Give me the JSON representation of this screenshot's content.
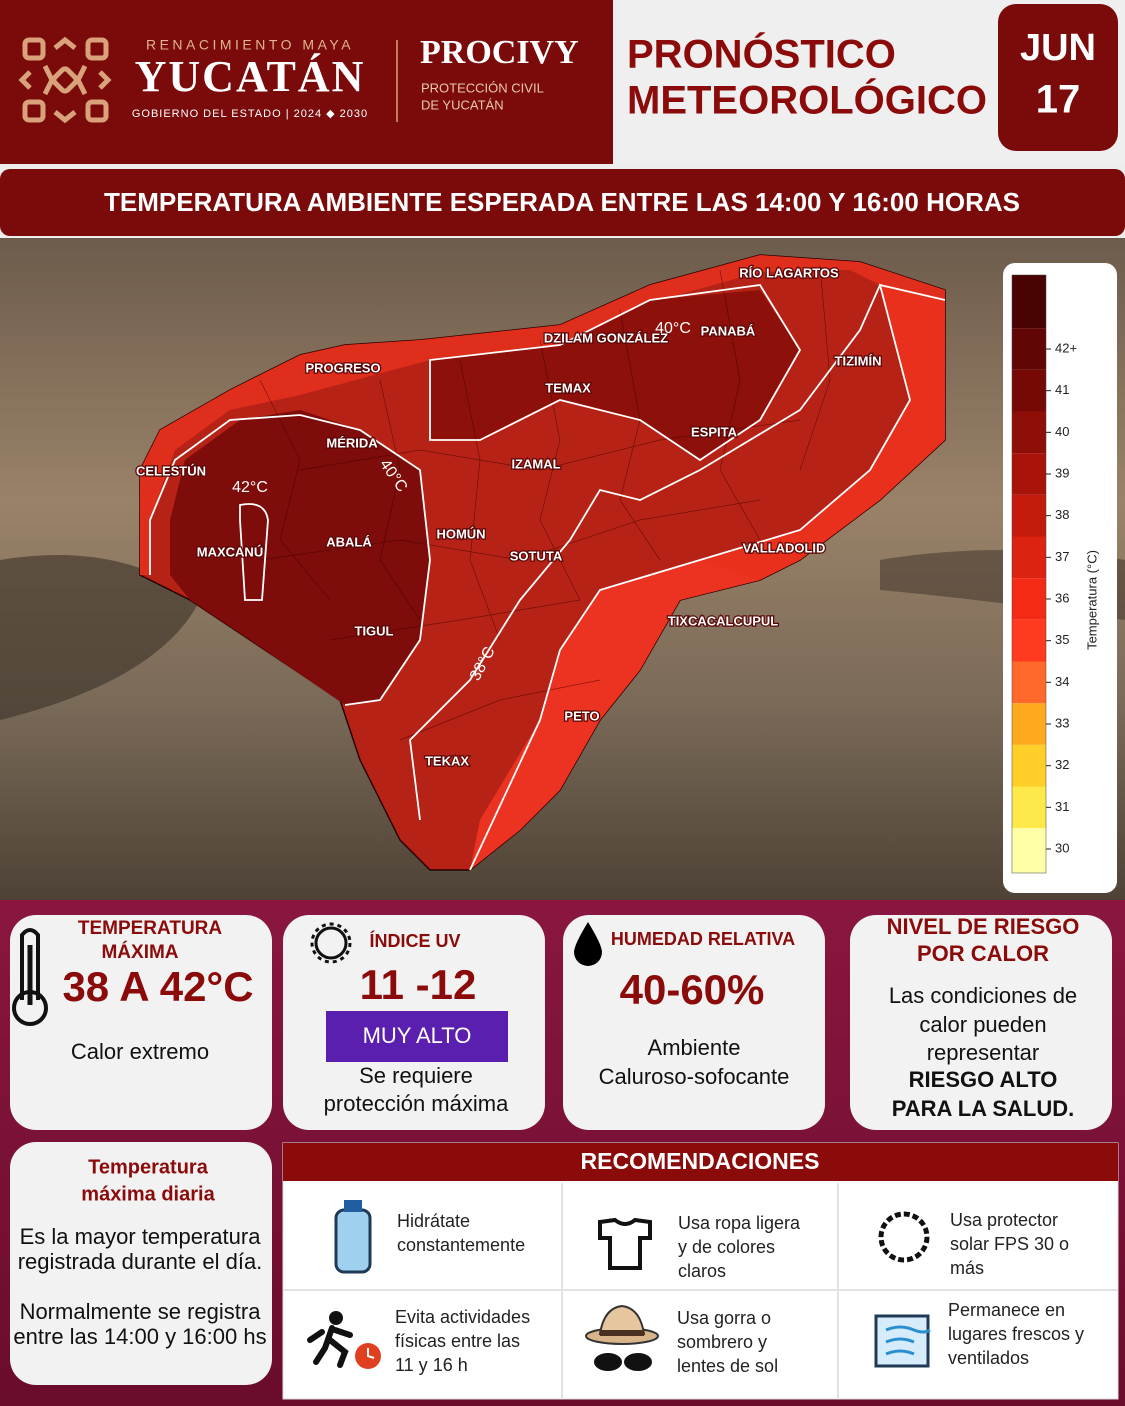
{
  "header": {
    "logo": {
      "tagline": "RENACIMIENTO MAYA",
      "name": "YUCATÁN",
      "subtitle": "GOBIERNO DEL ESTADO | 2024 ◆ 2030"
    },
    "agency": {
      "name": "PROCIVY",
      "lines": [
        "PROTECCIÓN CIVIL",
        "DE YUCATÁN"
      ]
    },
    "title": [
      "PRONÓSTICO",
      "METEOROLÓGICO"
    ],
    "date": {
      "month": "JUN",
      "day": "17"
    }
  },
  "banner": "TEMPERATURA AMBIENTE ESPERADA ENTRE LAS 14:00 Y 16:00 HORAS",
  "map": {
    "places": [
      "RÍO LAGARTOS",
      "DZILAM GONZÁLEZ",
      "PANABÁ",
      "PROGRESO",
      "TIZIMÍN",
      "TEMAX",
      "MÉRIDA",
      "ESPITA",
      "IZAMAL",
      "CELESTÚN",
      "MAXCANÚ",
      "ABALÁ",
      "HOMÚN",
      "SOTUTA",
      "VALLADOLID",
      "TIGUL",
      "TIXCACALCUPUL",
      "PETO",
      "TEKAX"
    ],
    "contours": [
      "42°C",
      "40°C",
      "40°C",
      "38°C"
    ],
    "legend": {
      "title": "Temperatura (°C)",
      "ticks": [
        30,
        31,
        32,
        33,
        34,
        35,
        36,
        37,
        38,
        39,
        40,
        41,
        {
          "value": 42,
          "label": "42+"
        }
      ],
      "colors": [
        "#ffffa8",
        "#ffe84a",
        "#ffce28",
        "#ffaa1e",
        "#ff6a2a",
        "#ff3a1e",
        "#f42a14",
        "#dc2210",
        "#c41a0c",
        "#a8130a",
        "#8e0e08",
        "#760906",
        "#620505",
        "#4a0303"
      ]
    }
  },
  "cards": [
    {
      "title": [
        "TEMPERATURA",
        "MÁXIMA"
      ],
      "value": "38 A 42°C",
      "lines": [
        "Calor extremo"
      ]
    },
    {
      "title": [
        "ÍNDICE UV"
      ],
      "value": "11 -12",
      "badge": "MUY ALTO",
      "lines": [
        "Se requiere",
        "protección máxima"
      ]
    },
    {
      "title": [
        "HUMEDAD RELATIVA"
      ],
      "value": "40-60%",
      "lines": [
        "Ambiente",
        "Caluroso-sofocante"
      ]
    },
    {
      "title": [
        "NIVEL DE RIESGO",
        "POR CALOR"
      ],
      "lines": [
        "Las condiciones de",
        "calor pueden",
        "representar",
        "RIESGO ALTO",
        "PARA LA SALUD."
      ]
    }
  ],
  "info": {
    "title": [
      "Temperatura",
      "máxima diaria"
    ],
    "lines": [
      "Es la mayor temperatura",
      "registrada durante el día.",
      "Normalmente se registra",
      "entre las 14:00 y 16:00 hs"
    ]
  },
  "recommendations": {
    "title": "RECOMENDACIONES",
    "items": [
      {
        "lines": [
          "Hidrátate",
          "constantemente"
        ]
      },
      {
        "lines": [
          "Usa ropa ligera",
          "y de colores",
          "claros"
        ]
      },
      {
        "lines": [
          "Usa protector",
          "solar FPS 30 o",
          "más"
        ]
      },
      {
        "lines": [
          "Evita actividades",
          "físicas entre las",
          "11 y 16 h"
        ]
      },
      {
        "lines": [
          "Usa gorra o",
          "sombrero y",
          "lentes de sol"
        ]
      },
      {
        "lines": [
          "Permanece en",
          "lugares frescos y",
          "ventilados"
        ]
      }
    ]
  }
}
